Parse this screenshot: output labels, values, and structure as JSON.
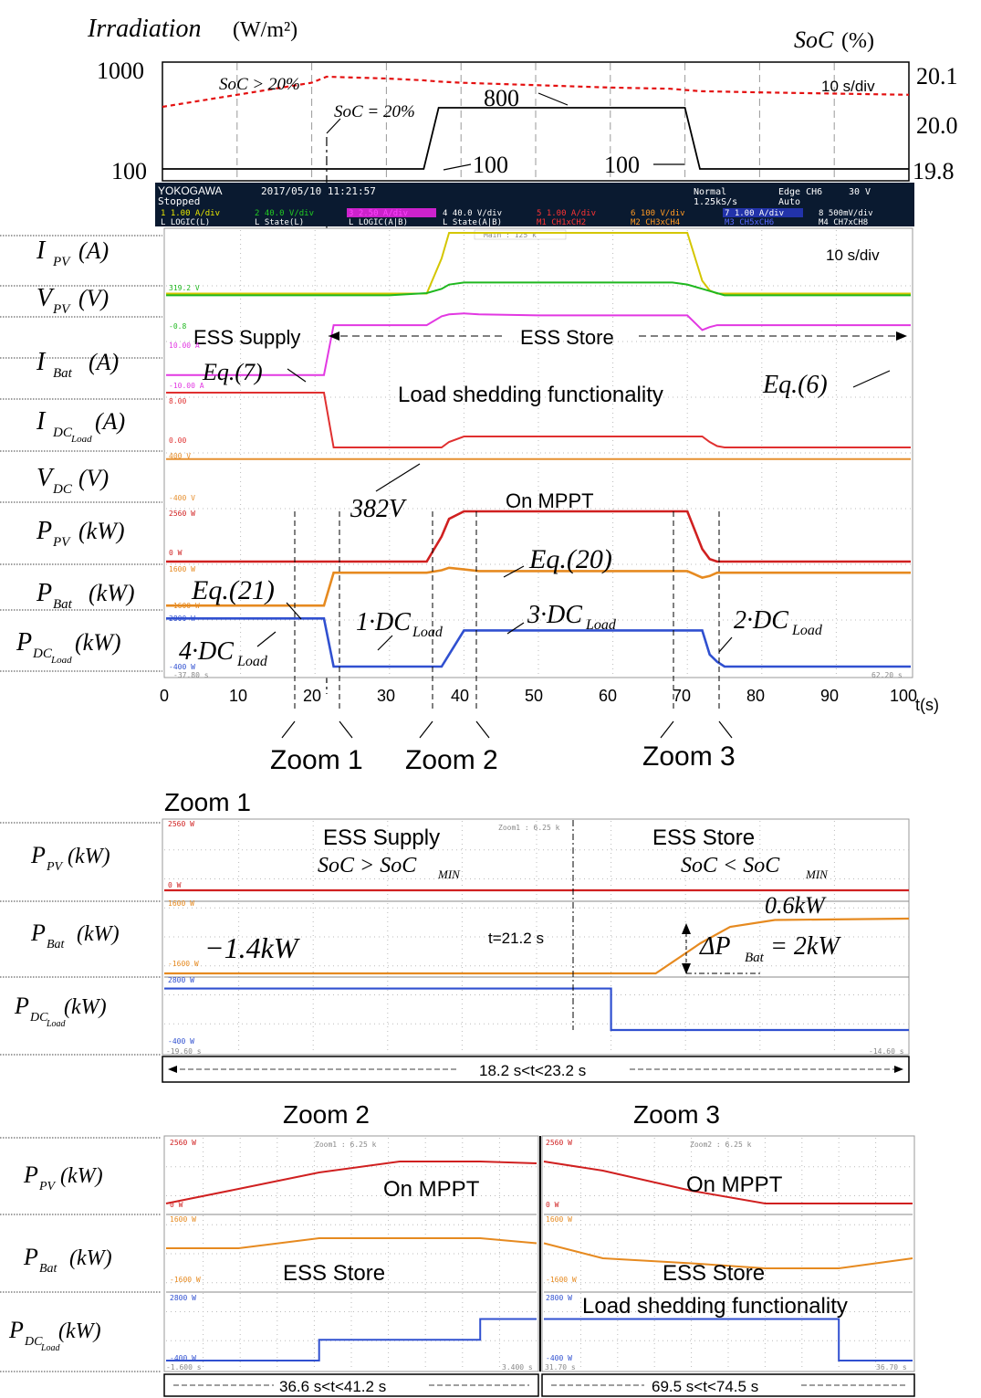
{
  "chart_data": [
    {
      "type": "line",
      "title": "",
      "xlabel": "t(s)",
      "ylabel_left_main": "Irradiation",
      "ylabel_left_unit": "(W/m²)",
      "ylabel_right_main": "SoC",
      "ylabel_right_unit": "(%)",
      "y_left_ticks": [
        "1000",
        "100"
      ],
      "y_right_ticks": [
        "20.1",
        "20.0",
        "19.8"
      ],
      "timebase": "10 s/div",
      "x": [
        0,
        10,
        20,
        22,
        30,
        35,
        37,
        40,
        50,
        60,
        68,
        70,
        72,
        80,
        90,
        100
      ],
      "series": [
        {
          "name": "Irradiation",
          "values": [
            100,
            100,
            100,
            100,
            100,
            100,
            800,
            800,
            800,
            800,
            800,
            800,
            100,
            100,
            100,
            100
          ]
        },
        {
          "name": "SoC",
          "values": [
            20.05,
            20.03,
            20.01,
            20.0,
            20.003,
            20.006,
            20.008,
            20.01,
            20.014,
            20.018,
            20.02,
            20.022,
            20.024,
            20.026,
            20.028,
            20.03
          ]
        }
      ],
      "annotations": {
        "soc_gt": "SoC > 20%",
        "soc_eq": "SoC = 20%",
        "irr_800": "800",
        "irr_100a": "100",
        "irr_100b": "100"
      }
    },
    {
      "type": "line",
      "header": {
        "brand": "YOKOGAWA",
        "datetime": "2017/05/10  11:21:57",
        "state": "Stopped",
        "mode": "Normal",
        "rate": "1.25kS/s",
        "trigger": "Edge CH6",
        "trigger_level": "30 V",
        "trigger_mode": "Auto",
        "ch": [
          {
            "label": "1",
            "scale": "1.00 A/div",
            "color": "#e8e800"
          },
          {
            "label": "2",
            "scale": "40.0 V/div",
            "color": "#22cc22"
          },
          {
            "label": "3",
            "scale": "2.50 A/div",
            "color": "#ff44ff"
          },
          {
            "label": "4",
            "scale": "40.0 V/div",
            "color": "#ffffff"
          },
          {
            "label": "5",
            "scale": "1.00 A/div",
            "color": "#ff3333"
          },
          {
            "label": "6",
            "scale": "100 V/div",
            "color": "#ff9922"
          },
          {
            "label": "7",
            "scale": "1.00 A/div",
            "color": "#ffffff"
          },
          {
            "label": "8",
            "scale": "500mV/div",
            "color": "#ffffff"
          }
        ],
        "row2": [
          "L  LOGIC(L)",
          "L  State(L)",
          "L  LOGIC(A|B)",
          "L  State(A|B)",
          "M1 CH1xCH2",
          "M2 CH3xCH4",
          "M3 CH5xCH6",
          "M4 CH7xCH8"
        ]
      },
      "zoom_box": "Main : 125 k",
      "time_start": "-37.80 s",
      "time_end": "62.20 s",
      "xlabel": "t(s)",
      "x_ticks": [
        0,
        10,
        20,
        30,
        40,
        50,
        60,
        70,
        80,
        90,
        100
      ],
      "xlim": [
        0,
        100
      ],
      "timebase": "10 s/div",
      "x": [
        0,
        10,
        20,
        21.2,
        22.5,
        30,
        35,
        37,
        38,
        40,
        42,
        50,
        60,
        68,
        70,
        72,
        73,
        74,
        75,
        80,
        90,
        100
      ],
      "channels": [
        {
          "label_main": "I",
          "label_sub": "PV",
          "label_unit": "(A)",
          "color": "#d4c600",
          "values": [
            0.1,
            0.1,
            0.1,
            0.1,
            0.1,
            0.1,
            0.1,
            1.2,
            2.0,
            2.0,
            2.0,
            2.0,
            2.0,
            2.0,
            2.0,
            0.5,
            0.2,
            0.1,
            0.1,
            0.1,
            0.1,
            0.1
          ]
        },
        {
          "label_main": "V",
          "label_sub": "PV",
          "label_unit": "(V)",
          "color": "#1fb81f",
          "values": [
            310,
            310,
            310,
            310,
            310,
            310,
            311,
            313,
            315,
            316,
            316,
            316,
            316,
            316,
            315,
            313,
            312,
            311,
            310,
            310,
            310,
            310
          ]
        },
        {
          "label_main": "I",
          "label_sub": "Bat",
          "label_unit": "(A)",
          "color": "#e238e2",
          "values": [
            -3.6,
            -3.6,
            -3.6,
            -3.6,
            1.5,
            1.5,
            1.5,
            2.4,
            2.6,
            2.7,
            2.6,
            2.5,
            2.5,
            2.5,
            2.5,
            1.0,
            1.3,
            1.5,
            1.5,
            1.5,
            1.5,
            1.5
          ]
        },
        {
          "label_main": "I",
          "label_sub": "DC Load",
          "label_unit": "(A)",
          "color": "#e03030",
          "values": [
            8.0,
            8.0,
            8.0,
            8.0,
            0.0,
            0.0,
            0.0,
            0.0,
            0.8,
            1.6,
            1.6,
            1.6,
            1.6,
            1.6,
            1.6,
            1.6,
            0.8,
            0.2,
            0.0,
            0.0,
            0.0,
            0.0
          ]
        },
        {
          "label_main": "V",
          "label_sub": "DC",
          "label_unit": "(V)",
          "color": "#e69030",
          "values": [
            382,
            382,
            382,
            382,
            382,
            382,
            382,
            382,
            382,
            382,
            382,
            382,
            382,
            382,
            382,
            382,
            382,
            382,
            382,
            382,
            382,
            382
          ]
        },
        {
          "label_main": "P",
          "label_sub": "PV",
          "label_unit": "(kW)",
          "color": "#d02020",
          "values": [
            0,
            0,
            0,
            0,
            0,
            0,
            0,
            1000,
            1700,
            2000,
            2000,
            2000,
            2000,
            2000,
            2000,
            500,
            100,
            0,
            0,
            0,
            0,
            0
          ]
        },
        {
          "label_main": "P",
          "label_sub": "Bat",
          "label_unit": "(kW)",
          "color": "#e68a20",
          "values": [
            -1400,
            -1400,
            -1400,
            -1400,
            600,
            600,
            600,
            750,
            900,
            800,
            700,
            700,
            700,
            700,
            700,
            300,
            400,
            600,
            600,
            600,
            600,
            600
          ]
        },
        {
          "label_main": "P",
          "label_sub": "DC Load",
          "label_unit": "(kW)",
          "color": "#3050d0",
          "values": [
            2000,
            2000,
            2000,
            2000,
            0,
            0,
            0,
            0,
            500,
            1500,
            1500,
            1500,
            1500,
            1500,
            1500,
            1500,
            500,
            200,
            0,
            0,
            0,
            0
          ]
        }
      ],
      "annotations": {
        "ess_supply": "ESS Supply",
        "ess_store": "ESS Store",
        "load_shedding": "Load shedding functionality",
        "eq7": "Eq.(7)",
        "eq6": "Eq.(6)",
        "v382": "382V",
        "on_mppt": "On MPPT",
        "eq20": "Eq.(20)",
        "eq21": "Eq.(21)",
        "dc1": "1·DC",
        "dc2": "2·DC",
        "dc3": "3·DC",
        "dc4": "4·DC",
        "dc_sub": "Load",
        "zoom1": "Zoom 1",
        "zoom2": "Zoom 2",
        "zoom3": "Zoom 3"
      }
    },
    {
      "type": "line",
      "title": "Zoom 1",
      "zoom_box": "Zoom1 : 6.25 k",
      "time_start": "-19.60 s",
      "time_end": "-14.60 s",
      "range_label": "18.2 s<t<23.2 s",
      "x": [
        18.2,
        19,
        20,
        21,
        21.2,
        21.5,
        21.8,
        22.0,
        22.3,
        23.2
      ],
      "channels": [
        {
          "label_main": "P",
          "label_sub": "PV",
          "label_unit": "(kW)",
          "color": "#d02020",
          "values": [
            0,
            0,
            0,
            0,
            0,
            0,
            0,
            0,
            0,
            0
          ]
        },
        {
          "label_main": "P",
          "label_sub": "Bat",
          "label_unit": "(kW)",
          "color": "#e68a20",
          "values": [
            -1400,
            -1400,
            -1400,
            -1400,
            -1400,
            -1400,
            -300,
            300,
            550,
            600
          ]
        },
        {
          "label_main": "P",
          "label_sub": "DC Load",
          "label_unit": "(kW)",
          "color": "#3050d0",
          "values": [
            2000,
            2000,
            2000,
            2000,
            0,
            0,
            0,
            0,
            0,
            0
          ]
        }
      ],
      "annotations": {
        "supply": "ESS Supply",
        "supply_cond": "SoC > SoC",
        "store": "ESS Store",
        "store_cond": "SoC < SoC",
        "min": "MIN",
        "minus14": "−1.4kW",
        "p06": "0.6kW",
        "t212": "t=21.2 s",
        "delta": "ΔP",
        "delta_sub": "Bat",
        "delta_val": "= 2kW"
      }
    },
    {
      "type": "line",
      "title": "Zoom 2",
      "zoom_box": "Zoom1 : 6.25 k",
      "time_start": "-1.600 s",
      "time_end": "3.400 s",
      "range_label": "36.6 s<t<41.2 s",
      "x": [
        36.6,
        37.5,
        38.5,
        39.5,
        40.5,
        41.2
      ],
      "channels": [
        {
          "label_main": "P",
          "label_sub": "PV",
          "label_unit": "(kW)",
          "color": "#d02020",
          "values": [
            0,
            800,
            1700,
            2300,
            2300,
            2200
          ]
        },
        {
          "label_main": "P",
          "label_sub": "Bat",
          "label_unit": "(kW)",
          "color": "#e68a20",
          "values": [
            600,
            600,
            800,
            800,
            800,
            700
          ]
        },
        {
          "label_main": "P",
          "label_sub": "DC Load",
          "label_unit": "(kW)",
          "color": "#3050d0",
          "values": [
            0,
            0,
            500,
            500,
            1000,
            1000
          ]
        }
      ],
      "annotations": {
        "on_mppt": "On MPPT",
        "ess_store": "ESS Store"
      }
    },
    {
      "type": "line",
      "title": "Zoom 3",
      "zoom_box": "Zoom2 : 6.25 k",
      "time_start": "31.70 s",
      "time_end": "36.70 s",
      "range_label": "69.5 s<t<74.5 s",
      "x": [
        69.5,
        70.3,
        71.5,
        72.5,
        73.5,
        74.5
      ],
      "channels": [
        {
          "label_main": "P",
          "label_sub": "PV",
          "label_unit": "(kW)",
          "color": "#d02020",
          "values": [
            2300,
            1800,
            700,
            0,
            0,
            0
          ]
        },
        {
          "label_main": "P",
          "label_sub": "Bat",
          "label_unit": "(kW)",
          "color": "#e68a20",
          "values": [
            700,
            400,
            300,
            200,
            200,
            400
          ]
        },
        {
          "label_main": "P",
          "label_sub": "DC Load",
          "label_unit": "(kW)",
          "color": "#3050d0",
          "values": [
            1000,
            1000,
            1000,
            1000,
            0,
            0
          ]
        }
      ],
      "annotations": {
        "on_mppt": "On MPPT",
        "ess_store": "ESS Store",
        "load_shedding": "Load shedding functionality"
      }
    }
  ],
  "scope_small": {
    "p2560": "2560 W",
    "p0": "0 W",
    "p1600": "1600 W",
    "pm1600": "-1600 W",
    "p2800": "2800 W",
    "pm400": "-400 W",
    "i8": "8.00",
    "i0": "0.00",
    "v400": "400 V",
    "vm400": "-400 V",
    "v319": "319.2 V",
    "i100": "10.00 A",
    "im100": "-10.00 A",
    "vm08": "-0.8"
  }
}
